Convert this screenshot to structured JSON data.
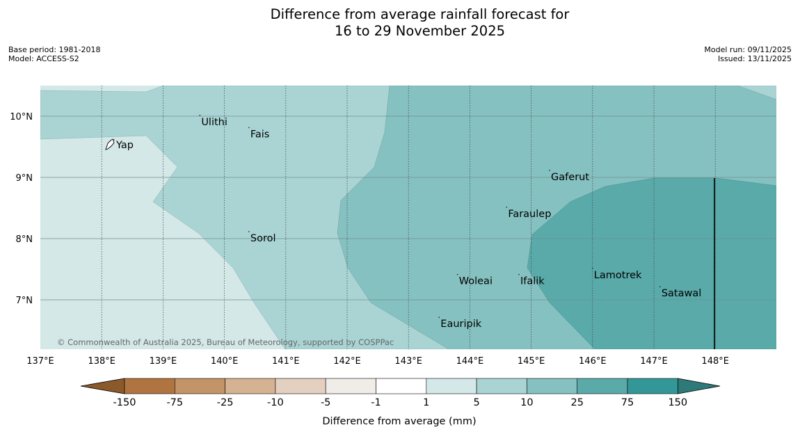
{
  "title_line1": "Difference from average rainfall forecast for",
  "title_line2": "16 to 29 November 2025",
  "meta_left": [
    "Base period: 1981-2018",
    "Model: ACCESS-S2"
  ],
  "meta_right": [
    "Model run: 09/11/2025",
    "Issued: 13/11/2025"
  ],
  "copyright": "© Commonwealth of Australia 2025, Bureau of Meteorology, supported by COSPPac",
  "lon_labels": [
    "137°E",
    "138°E",
    "139°E",
    "140°E",
    "141°E",
    "142°E",
    "143°E",
    "144°E",
    "145°E",
    "146°E",
    "147°E",
    "148°E"
  ],
  "lat_labels": [
    "10°N",
    "9°N",
    "8°N",
    "7°N"
  ],
  "places": [
    {
      "name": "Yap",
      "lon": 138.2,
      "lat": 9.5
    },
    {
      "name": "Ulithi",
      "lon": 139.6,
      "lat": 9.9
    },
    {
      "name": "Fais",
      "lon": 140.4,
      "lat": 9.7
    },
    {
      "name": "Gaferut",
      "lon": 145.3,
      "lat": 9.0
    },
    {
      "name": "Faraulep",
      "lon": 144.6,
      "lat": 8.4
    },
    {
      "name": "Sorol",
      "lon": 140.4,
      "lat": 8.0
    },
    {
      "name": "Lamotrek",
      "lon": 146.0,
      "lat": 7.4
    },
    {
      "name": "Satawal",
      "lon": 147.1,
      "lat": 7.1
    },
    {
      "name": "Woleai",
      "lon": 143.8,
      "lat": 7.3
    },
    {
      "name": "Ifalik",
      "lon": 144.8,
      "lat": 7.3
    },
    {
      "name": "Eauripik",
      "lon": 143.5,
      "lat": 6.6
    }
  ],
  "colorbar": {
    "label": "Difference from average (mm)",
    "ticks": [
      "-150",
      "-75",
      "-25",
      "-10",
      "-5",
      "-1",
      "1",
      "5",
      "10",
      "25",
      "75",
      "150"
    ],
    "colors": [
      "#b07440",
      "#c39467",
      "#d5b292",
      "#e4d0c0",
      "#f0ede9",
      "#ffffff",
      "#d4e8e8",
      "#aad4d4",
      "#86c1c1",
      "#5aaaaa",
      "#339797"
    ],
    "under_color": "#8b5a2b",
    "over_color": "#2e7a78"
  },
  "map_colors": {
    "land": "#d4e8e8",
    "band1": "#aad4d4",
    "band2": "#86c1c1",
    "band3": "#5aaaaa"
  }
}
